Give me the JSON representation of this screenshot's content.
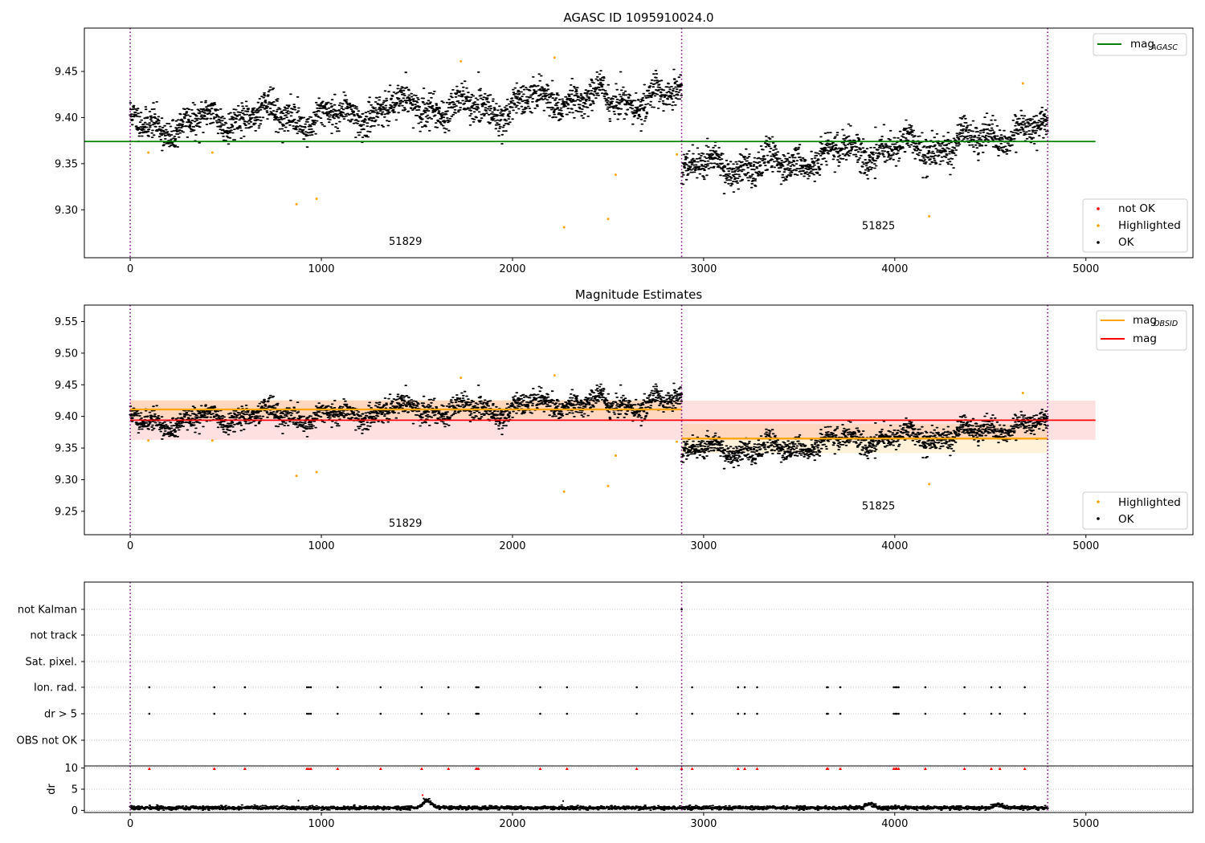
{
  "figure": {
    "colors": {
      "ok": "#000000",
      "highlighted": "#ffa500",
      "not_ok": "#ff0000",
      "agasc_line": "#008000",
      "obsid_line": "#ffa500",
      "mag_line": "#ff0000",
      "boundary": "#800080",
      "grid": "#b0b0b0"
    }
  },
  "chart_data": [
    {
      "type": "scatter",
      "title": "AGASC ID 1095910024.0",
      "xlim": [
        -240,
        5560
      ],
      "ylim": [
        9.248,
        9.497
      ],
      "xticks": [
        0,
        1000,
        2000,
        3000,
        4000,
        5000
      ],
      "yticks": [
        9.3,
        9.35,
        9.4,
        9.45
      ],
      "ytick_labels": [
        "9.30",
        "9.35",
        "9.40",
        "9.45"
      ],
      "boundaries": [
        0,
        2885,
        4800
      ],
      "obsids": [
        {
          "label": "51829",
          "x": 1440,
          "y": 9.262,
          "x_range": [
            0,
            2885
          ],
          "base": [
            9.392,
            9.425
          ],
          "amp": 0.018
        },
        {
          "label": "51825",
          "x": 3915,
          "y": 9.279,
          "x_range": [
            2885,
            4800
          ],
          "base": [
            9.34,
            9.385
          ],
          "amp": 0.016
        }
      ],
      "mag_agasc": 9.374,
      "mag_agasc_xrange": [
        -240,
        5050
      ],
      "highlighted_points": [
        {
          "x": 95,
          "y": 9.362
        },
        {
          "x": 430,
          "y": 9.362
        },
        {
          "x": 870,
          "y": 9.306
        },
        {
          "x": 975,
          "y": 9.312
        },
        {
          "x": 1730,
          "y": 9.461
        },
        {
          "x": 2220,
          "y": 9.465
        },
        {
          "x": 2270,
          "y": 9.281
        },
        {
          "x": 2500,
          "y": 9.29
        },
        {
          "x": 2540,
          "y": 9.338
        },
        {
          "x": 2860,
          "y": 9.36
        },
        {
          "x": 4180,
          "y": 9.293
        },
        {
          "x": 4670,
          "y": 9.437
        }
      ],
      "legends": [
        {
          "position": "upper-right",
          "entries": [
            {
              "label": "mag",
              "sub": "AGASC",
              "style": "line",
              "color": "#008000"
            }
          ]
        },
        {
          "position": "lower-right",
          "entries": [
            {
              "label": "not OK",
              "style": "dot",
              "color": "#ff0000"
            },
            {
              "label": "Highlighted",
              "style": "dot",
              "color": "#ffa500"
            },
            {
              "label": "OK",
              "style": "dot",
              "color": "#000000"
            }
          ]
        }
      ]
    },
    {
      "type": "scatter",
      "title": "Magnitude Estimates",
      "xlim": [
        -240,
        5560
      ],
      "ylim": [
        9.213,
        9.576
      ],
      "xticks": [
        0,
        1000,
        2000,
        3000,
        4000,
        5000
      ],
      "yticks": [
        9.25,
        9.3,
        9.35,
        9.4,
        9.45,
        9.5,
        9.55
      ],
      "ytick_labels": [
        "9.25",
        "9.30",
        "9.35",
        "9.40",
        "9.45",
        "9.50",
        "9.55"
      ],
      "boundaries": [
        0,
        2885,
        4800
      ],
      "obsids": [
        {
          "label": "51829",
          "x": 1440,
          "y": 9.226,
          "x_range": [
            0,
            2885
          ],
          "base": [
            9.392,
            9.425
          ],
          "amp": 0.018,
          "mean": 9.411,
          "band": [
            9.396,
            9.426
          ]
        },
        {
          "label": "51825",
          "x": 3915,
          "y": 9.253,
          "x_range": [
            2885,
            4800
          ],
          "base": [
            9.34,
            9.385
          ],
          "amp": 0.016,
          "mean": 9.365,
          "band": [
            9.342,
            9.388
          ]
        }
      ],
      "mag": 9.394,
      "mag_band": [
        9.363,
        9.425
      ],
      "mag_xrange": [
        -240,
        5050
      ],
      "highlighted_points": [
        {
          "x": 95,
          "y": 9.362
        },
        {
          "x": 430,
          "y": 9.362
        },
        {
          "x": 870,
          "y": 9.306
        },
        {
          "x": 975,
          "y": 9.312
        },
        {
          "x": 1730,
          "y": 9.461
        },
        {
          "x": 2220,
          "y": 9.465
        },
        {
          "x": 2270,
          "y": 9.281
        },
        {
          "x": 2500,
          "y": 9.29
        },
        {
          "x": 2540,
          "y": 9.338
        },
        {
          "x": 2860,
          "y": 9.36
        },
        {
          "x": 4180,
          "y": 9.293
        },
        {
          "x": 4670,
          "y": 9.437
        }
      ],
      "legends": [
        {
          "position": "upper-right",
          "entries": [
            {
              "label": "mag",
              "sub": "OBSID",
              "style": "line",
              "color": "#ffa500"
            },
            {
              "label": "mag",
              "style": "line",
              "color": "#ff0000"
            }
          ]
        },
        {
          "position": "lower-right",
          "entries": [
            {
              "label": "Highlighted",
              "style": "dot",
              "color": "#ffa500"
            },
            {
              "label": "OK",
              "style": "dot",
              "color": "#000000"
            }
          ]
        }
      ]
    },
    {
      "type": "scatter",
      "xlim": [
        -240,
        5560
      ],
      "boundaries": [
        0,
        2885,
        4800
      ],
      "flag_rows": [
        "not Kalman",
        "not track",
        "Sat. pixel.",
        "Ion. rad.",
        "dr > 5",
        "OBS not OK"
      ],
      "flag_events": {
        "not Kalman": [
          2885
        ],
        "Ion. rad.": [
          100,
          440,
          600,
          925,
          935,
          945,
          1085,
          1310,
          1525,
          1665,
          1810,
          1815,
          1822,
          2145,
          2285,
          2650,
          2940,
          3180,
          3215,
          3280,
          3645,
          3650,
          3715,
          3995,
          4005,
          4010,
          4020,
          4160,
          4365,
          4505,
          4550,
          4680
        ],
        "dr > 5": [
          100,
          440,
          600,
          925,
          935,
          945,
          1085,
          1310,
          1525,
          1665,
          1810,
          1815,
          1822,
          2145,
          2285,
          2650,
          2940,
          3180,
          3215,
          3280,
          3645,
          3650,
          3715,
          3995,
          4005,
          4010,
          4020,
          4160,
          4365,
          4505,
          4550,
          4680
        ]
      }
    },
    {
      "type": "scatter",
      "ylabel": "dr",
      "xlim": [
        -240,
        5560
      ],
      "ylim": [
        -0.5,
        10.5
      ],
      "xticks": [
        0,
        1000,
        2000,
        3000,
        4000,
        5000
      ],
      "yticks": [
        0,
        5,
        10
      ],
      "ytick_labels": [
        "0",
        "5",
        "10"
      ],
      "boundaries": [
        0,
        2885,
        4800
      ],
      "clipped_value": 10,
      "dr_baseline": 0.6,
      "dr_bumps": [
        {
          "x": 1555,
          "height": 1.8,
          "width": 30
        },
        {
          "x": 3870,
          "height": 0.9,
          "width": 30
        },
        {
          "x": 4540,
          "height": 0.8,
          "width": 30
        }
      ],
      "dr_points": [
        {
          "x": 1530,
          "y": 3.6
        },
        {
          "x": 1535,
          "y": 2.8
        },
        {
          "x": 880,
          "y": 2.3
        },
        {
          "x": 2265,
          "y": 2.2
        }
      ],
      "clipped_x": [
        100,
        440,
        600,
        925,
        935,
        945,
        1085,
        1310,
        1525,
        1665,
        1810,
        1815,
        1822,
        2145,
        2285,
        2650,
        2885,
        2940,
        3180,
        3215,
        3280,
        3645,
        3650,
        3715,
        3995,
        4005,
        4010,
        4020,
        4160,
        4365,
        4505,
        4550,
        4680
      ]
    }
  ]
}
